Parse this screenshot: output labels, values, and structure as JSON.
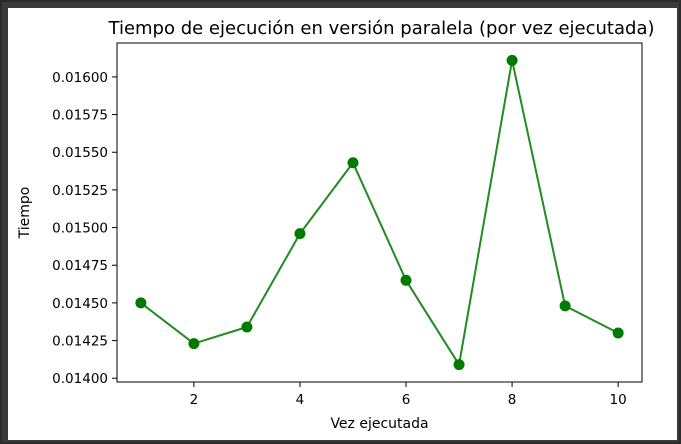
{
  "chart_data": {
    "type": "line",
    "title": "Tiempo de ejecución en versión paralela (por vez ejecutada)",
    "xlabel": "Vez ejecutada",
    "ylabel": "Tiempo",
    "x": [
      1,
      2,
      3,
      4,
      5,
      6,
      7,
      8,
      9,
      10
    ],
    "series": [
      {
        "values": [
          0.0145,
          0.01423,
          0.01434,
          0.01496,
          0.01543,
          0.01465,
          0.01409,
          0.01611,
          0.01448,
          0.0143
        ]
      }
    ],
    "xticks": [
      2,
      4,
      6,
      8,
      10
    ],
    "yticks": [
      0.014,
      0.01425,
      0.0145,
      0.01475,
      0.015,
      0.01525,
      0.0155,
      0.01575,
      0.016
    ],
    "xtick_labels": [
      "2",
      "4",
      "6",
      "8",
      "10"
    ],
    "ytick_labels": [
      "0.01400",
      "0.01425",
      "0.01450",
      "0.01475",
      "0.01500",
      "0.01525",
      "0.01550",
      "0.01575",
      "0.01600"
    ],
    "xlim": [
      0.55,
      10.45
    ],
    "ylim": [
      0.013975,
      0.016225
    ],
    "grid": false,
    "line_color": "#228b22",
    "marker_color": "#007a00"
  }
}
